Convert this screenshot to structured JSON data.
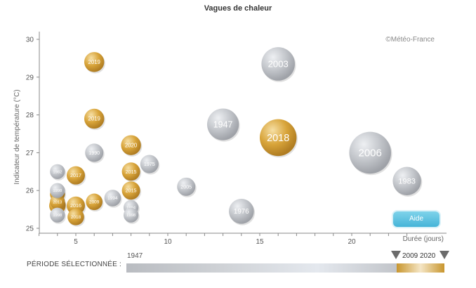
{
  "colors": {
    "selected_bubble": "#d5a33a",
    "other_bubble": "#b9bcc1",
    "help_button": "#4fb9dc"
  },
  "copyright": "©Météo-France",
  "help_button_label": "Aide",
  "period": {
    "label": "PÉRIODE SÉLECTIONNÉE :",
    "start": "1947",
    "end_a": "2009",
    "end_b": "2020"
  },
  "chart_data": {
    "type": "scatter",
    "title": "Vagues de chaleur",
    "xlabel": "Durée (jours)",
    "ylabel": "Indicateur de température (°C)",
    "xlim": [
      3,
      23
    ],
    "ylim": [
      24.9,
      30.25
    ],
    "xticks": [
      5,
      10,
      15,
      20
    ],
    "yticks": [
      25,
      26,
      27,
      28,
      29,
      30
    ],
    "grid": false,
    "series": [
      {
        "name": "2009–2020",
        "color": "#d5a33a",
        "points": [
          {
            "label": "2019",
            "x": 6,
            "y": 29.4,
            "size": 6
          },
          {
            "label": "2019",
            "x": 6,
            "y": 27.9,
            "size": 6
          },
          {
            "label": "2020",
            "x": 8,
            "y": 27.2,
            "size": 6
          },
          {
            "label": "2015",
            "x": 8,
            "y": 26.5,
            "size": 5
          },
          {
            "label": "2015",
            "x": 8,
            "y": 26.0,
            "size": 5
          },
          {
            "label": "2018",
            "x": 16,
            "y": 27.4,
            "size": 16
          },
          {
            "label": "2017",
            "x": 5,
            "y": 26.4,
            "size": 5
          },
          {
            "label": "2016",
            "x": 5,
            "y": 25.6,
            "size": 5
          },
          {
            "label": "2018",
            "x": 5,
            "y": 25.3,
            "size": 4
          },
          {
            "label": "2009",
            "x": 6,
            "y": 25.7,
            "size": 4
          },
          {
            "label": "2017",
            "x": 4,
            "y": 25.6,
            "size": 4
          },
          {
            "label": "2017",
            "x": 4,
            "y": 25.9,
            "size": 3
          },
          {
            "label": "2013",
            "x": 4,
            "y": 25.7,
            "size": 3
          }
        ]
      },
      {
        "name": "1947–2008",
        "color": "#b9bcc1",
        "points": [
          {
            "label": "2003",
            "x": 16,
            "y": 29.35,
            "size": 14
          },
          {
            "label": "1947",
            "x": 13,
            "y": 27.75,
            "size": 13
          },
          {
            "label": "2006",
            "x": 21,
            "y": 27.0,
            "size": 19
          },
          {
            "label": "1983",
            "x": 23,
            "y": 26.25,
            "size": 11
          },
          {
            "label": "1990",
            "x": 6,
            "y": 27.0,
            "size": 5
          },
          {
            "label": "1975",
            "x": 9,
            "y": 26.7,
            "size": 5
          },
          {
            "label": "2005",
            "x": 11,
            "y": 26.1,
            "size": 5
          },
          {
            "label": "1976",
            "x": 14,
            "y": 25.45,
            "size": 9
          },
          {
            "label": "1994",
            "x": 7,
            "y": 25.8,
            "size": 4
          },
          {
            "label": "1982",
            "x": 4,
            "y": 26.5,
            "size": 3
          },
          {
            "label": "1994",
            "x": 8,
            "y": 25.55,
            "size": 3
          },
          {
            "label": "1998",
            "x": 8,
            "y": 25.35,
            "size": 3
          },
          {
            "label": "1998",
            "x": 4,
            "y": 26.0,
            "size": 3
          },
          {
            "label": "1998",
            "x": 4,
            "y": 25.35,
            "size": 3
          }
        ]
      }
    ]
  }
}
